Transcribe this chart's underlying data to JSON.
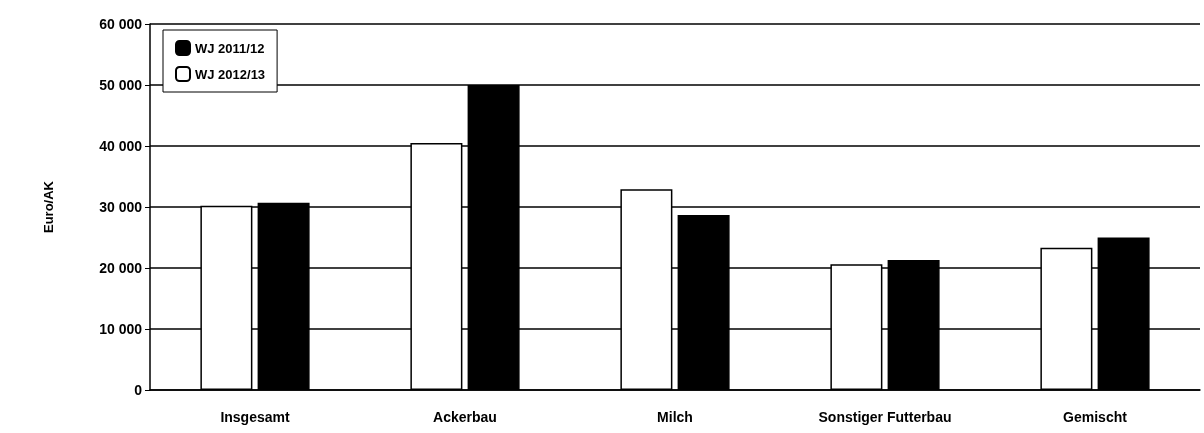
{
  "chart_data": {
    "type": "bar",
    "ylabel": "Euro/AK",
    "categories": [
      "Insgesamt",
      "Ackerbau",
      "Milch",
      "Sonstiger Futterbau",
      "Gemischt"
    ],
    "series": [
      {
        "name": "WJ 2012/13",
        "color": "#ffffff",
        "values": [
          30200,
          40500,
          32900,
          20600,
          23300
        ]
      },
      {
        "name": "WJ 2011/12",
        "color": "#000000",
        "values": [
          30700,
          50000,
          28700,
          21300,
          25000
        ]
      }
    ],
    "ylim": [
      0,
      60000
    ],
    "yticks": [
      0,
      {
        "value": 10000,
        "label": "10 000"
      },
      {
        "value": 20000,
        "label": "20 000"
      },
      {
        "value": 30000,
        "label": "30 000"
      },
      {
        "value": 40000,
        "label": "40 000"
      },
      {
        "value": 50000,
        "label": "50 000"
      },
      {
        "value": 60000,
        "label": "60 000"
      }
    ],
    "grid": "y",
    "legend": "top left"
  }
}
